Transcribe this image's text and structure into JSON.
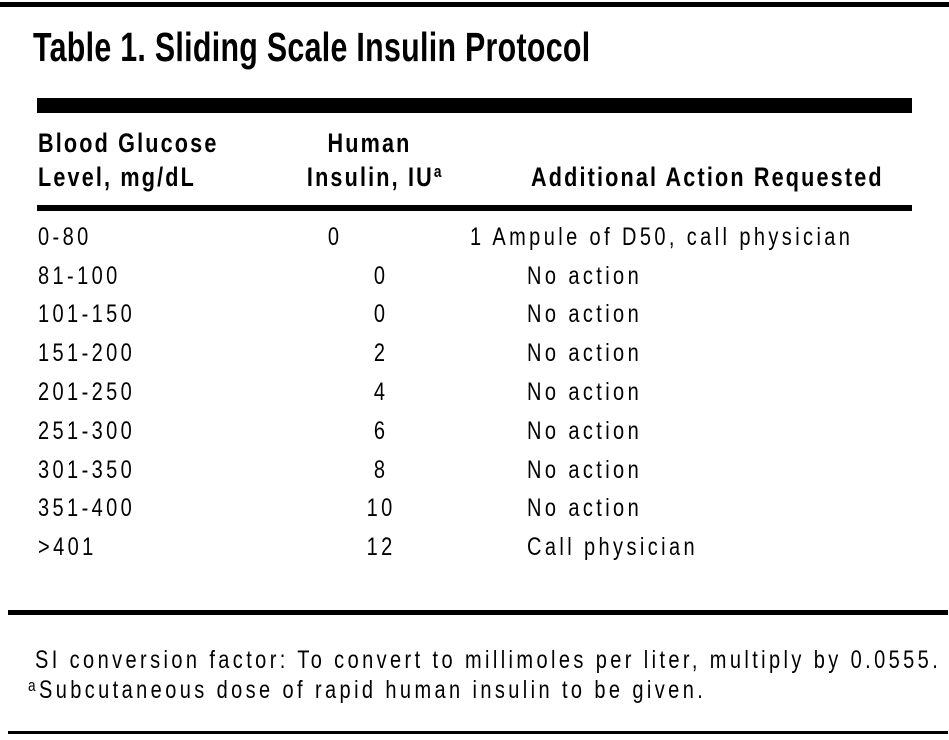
{
  "title": "Table 1. Sliding Scale Insulin Protocol",
  "table": {
    "header": {
      "col1_line1": "Blood Glucose",
      "col1_line2": "Level, mg/dL",
      "col2_line1": "Human",
      "col2_line2": "Insulin, IU",
      "col2_sup": "a",
      "col3": "Additional Action Requested"
    },
    "rows": [
      {
        "glucose": "0-80",
        "insulin": "0",
        "action": "1 Ampule of D50, call physician"
      },
      {
        "glucose": "81-100",
        "insulin": "0",
        "action": "No action"
      },
      {
        "glucose": "101-150",
        "insulin": "0",
        "action": "No action"
      },
      {
        "glucose": "151-200",
        "insulin": "2",
        "action": "No action"
      },
      {
        "glucose": "201-250",
        "insulin": "4",
        "action": "No action"
      },
      {
        "glucose": "251-300",
        "insulin": "6",
        "action": "No action"
      },
      {
        "glucose": "301-350",
        "insulin": "8",
        "action": "No action"
      },
      {
        "glucose": "351-400",
        "insulin": "10",
        "action": "No action"
      },
      {
        "glucose": ">401",
        "insulin": "12",
        "action": "Call physician"
      }
    ]
  },
  "footnotes": {
    "si_conversion": "SI conversion factor: To convert to millimoles per liter, multiply by 0.0555.",
    "a_sup": "a",
    "a_text": "Subcutaneous dose of rapid human insulin to be given."
  },
  "colors": {
    "text": "#000000",
    "background": "#ffffff",
    "rule": "#000000"
  }
}
